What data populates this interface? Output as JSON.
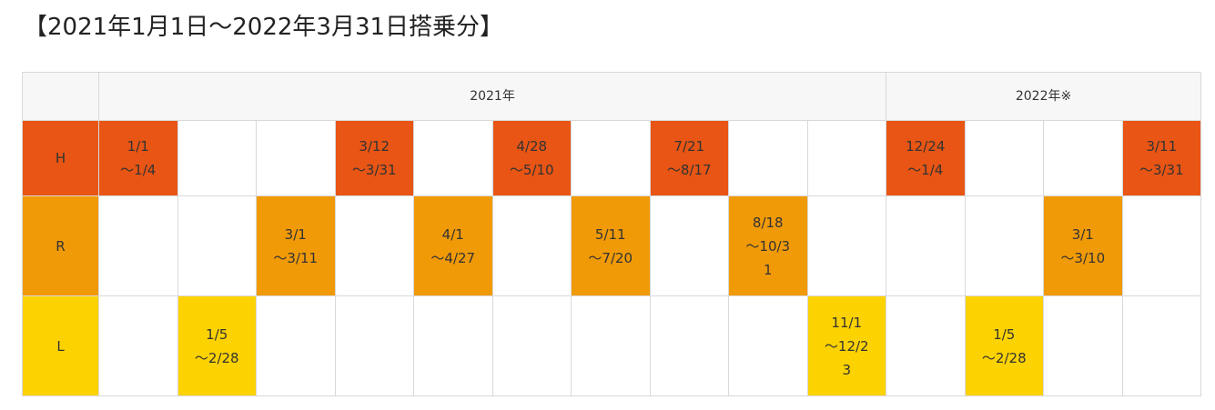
{
  "title": "【2021年1月1日〜2022年3月31日搭乗分】",
  "header": {
    "blank": "",
    "year_2021": "2021年",
    "year_2022": "2022年※"
  },
  "colors": {
    "h": "#e85514",
    "r": "#f19a07",
    "l": "#fcd200",
    "header_bg": "#f7f7f7",
    "border": "#d9d9d9"
  },
  "rows": {
    "h": {
      "label": "H",
      "cells": [
        "1/1\n〜1/4",
        "",
        "",
        "3/12\n〜3/31",
        "",
        "4/28\n〜5/10",
        "",
        "7/21\n〜8/17",
        "",
        "",
        "12/24\n〜1/4",
        "",
        "",
        "3/11\n〜3/31"
      ]
    },
    "r": {
      "label": "R",
      "cells": [
        "",
        "",
        "3/1\n〜3/11",
        "",
        "4/1\n〜4/27",
        "",
        "5/11\n〜7/20",
        "",
        "8/18\n〜10/3\n1",
        "",
        "",
        "",
        "3/1\n〜3/10",
        ""
      ]
    },
    "l": {
      "label": "L",
      "cells": [
        "",
        "1/5\n〜2/28",
        "",
        "",
        "",
        "",
        "",
        "",
        "",
        "11/1\n〜12/2\n3",
        "",
        "1/5\n〜2/28",
        "",
        ""
      ]
    }
  }
}
